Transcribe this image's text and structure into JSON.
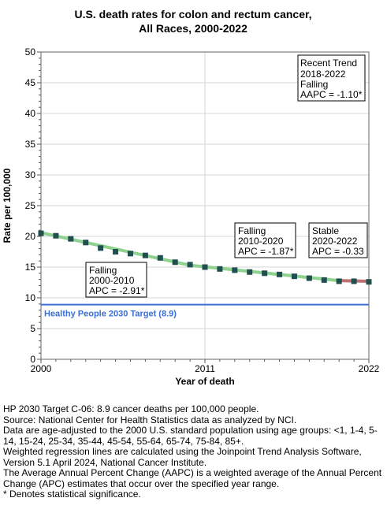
{
  "chart_data": {
    "type": "line",
    "title_lines": [
      "U.S. death rates for colon and rectum cancer,",
      "All Races,  2000-2022"
    ],
    "xlabel": "Year of death",
    "ylabel": "Rate per 100,000",
    "xlim": [
      2000,
      2022
    ],
    "ylim": [
      0,
      50
    ],
    "x_ticks": [
      "2000",
      "2011",
      "2022"
    ],
    "y_ticks": [
      "0",
      "5",
      "10",
      "15",
      "20",
      "25",
      "30",
      "35",
      "40",
      "45",
      "50"
    ],
    "observed": {
      "x": [
        2000,
        2001,
        2002,
        2003,
        2004,
        2005,
        2006,
        2007,
        2008,
        2009,
        2010,
        2011,
        2012,
        2013,
        2014,
        2015,
        2016,
        2017,
        2018,
        2019,
        2020,
        2021,
        2022
      ],
      "y": [
        20.5,
        20.1,
        19.6,
        19.0,
        18.1,
        17.5,
        17.2,
        16.9,
        16.5,
        15.8,
        15.4,
        15.0,
        14.7,
        14.5,
        14.2,
        14.0,
        13.8,
        13.5,
        13.2,
        12.9,
        12.7,
        12.7,
        12.6
      ]
    },
    "trend_segments": [
      {
        "x": [
          2000,
          2010
        ],
        "y": [
          20.6,
          15.3
        ],
        "color": "#8fd18f"
      },
      {
        "x": [
          2010,
          2020
        ],
        "y": [
          15.3,
          12.8
        ],
        "color": "#8fd18f"
      },
      {
        "x": [
          2020,
          2022
        ],
        "y": [
          12.8,
          12.7
        ],
        "color": "#c07070"
      }
    ],
    "target": {
      "value": 8.9,
      "label": "Healthy People 2030 Target (8.9)",
      "color": "#3a6fd8"
    },
    "annotations": [
      {
        "lines": [
          "Recent Trend",
          "2018-2022",
          "Falling",
          "AAPC = -1.10*"
        ]
      },
      {
        "lines": [
          "Falling",
          "2010-2020",
          "APC = -1.87*"
        ]
      },
      {
        "lines": [
          "Stable",
          "2020-2022",
          "APC = -0.33"
        ]
      },
      {
        "lines": [
          "Falling",
          "2000-2010",
          "APC = -2.91*"
        ]
      }
    ]
  },
  "footnotes": [
    "HP 2030 Target C-06: 8.9 cancer deaths per 100,000 people.",
    "Source: National Center for Health Statistics data as analyzed by NCI.",
    "Data are age-adjusted to the 2000 U.S. standard population using age groups: <1, 1-4, 5-14, 15-24, 25-34, 35-44, 45-54, 55-64, 65-74, 75-84, 85+.",
    "Weighted regression lines are calculated using the Joinpoint Trend Analysis Software, Version 5.1 April 2024, National Cancer Institute.",
    "The Average Annual Percent Change (AAPC) is a weighted average of the Annual Percent Change (APC) estimates that occur over the specified year range.",
    "* Denotes statistical significance."
  ]
}
